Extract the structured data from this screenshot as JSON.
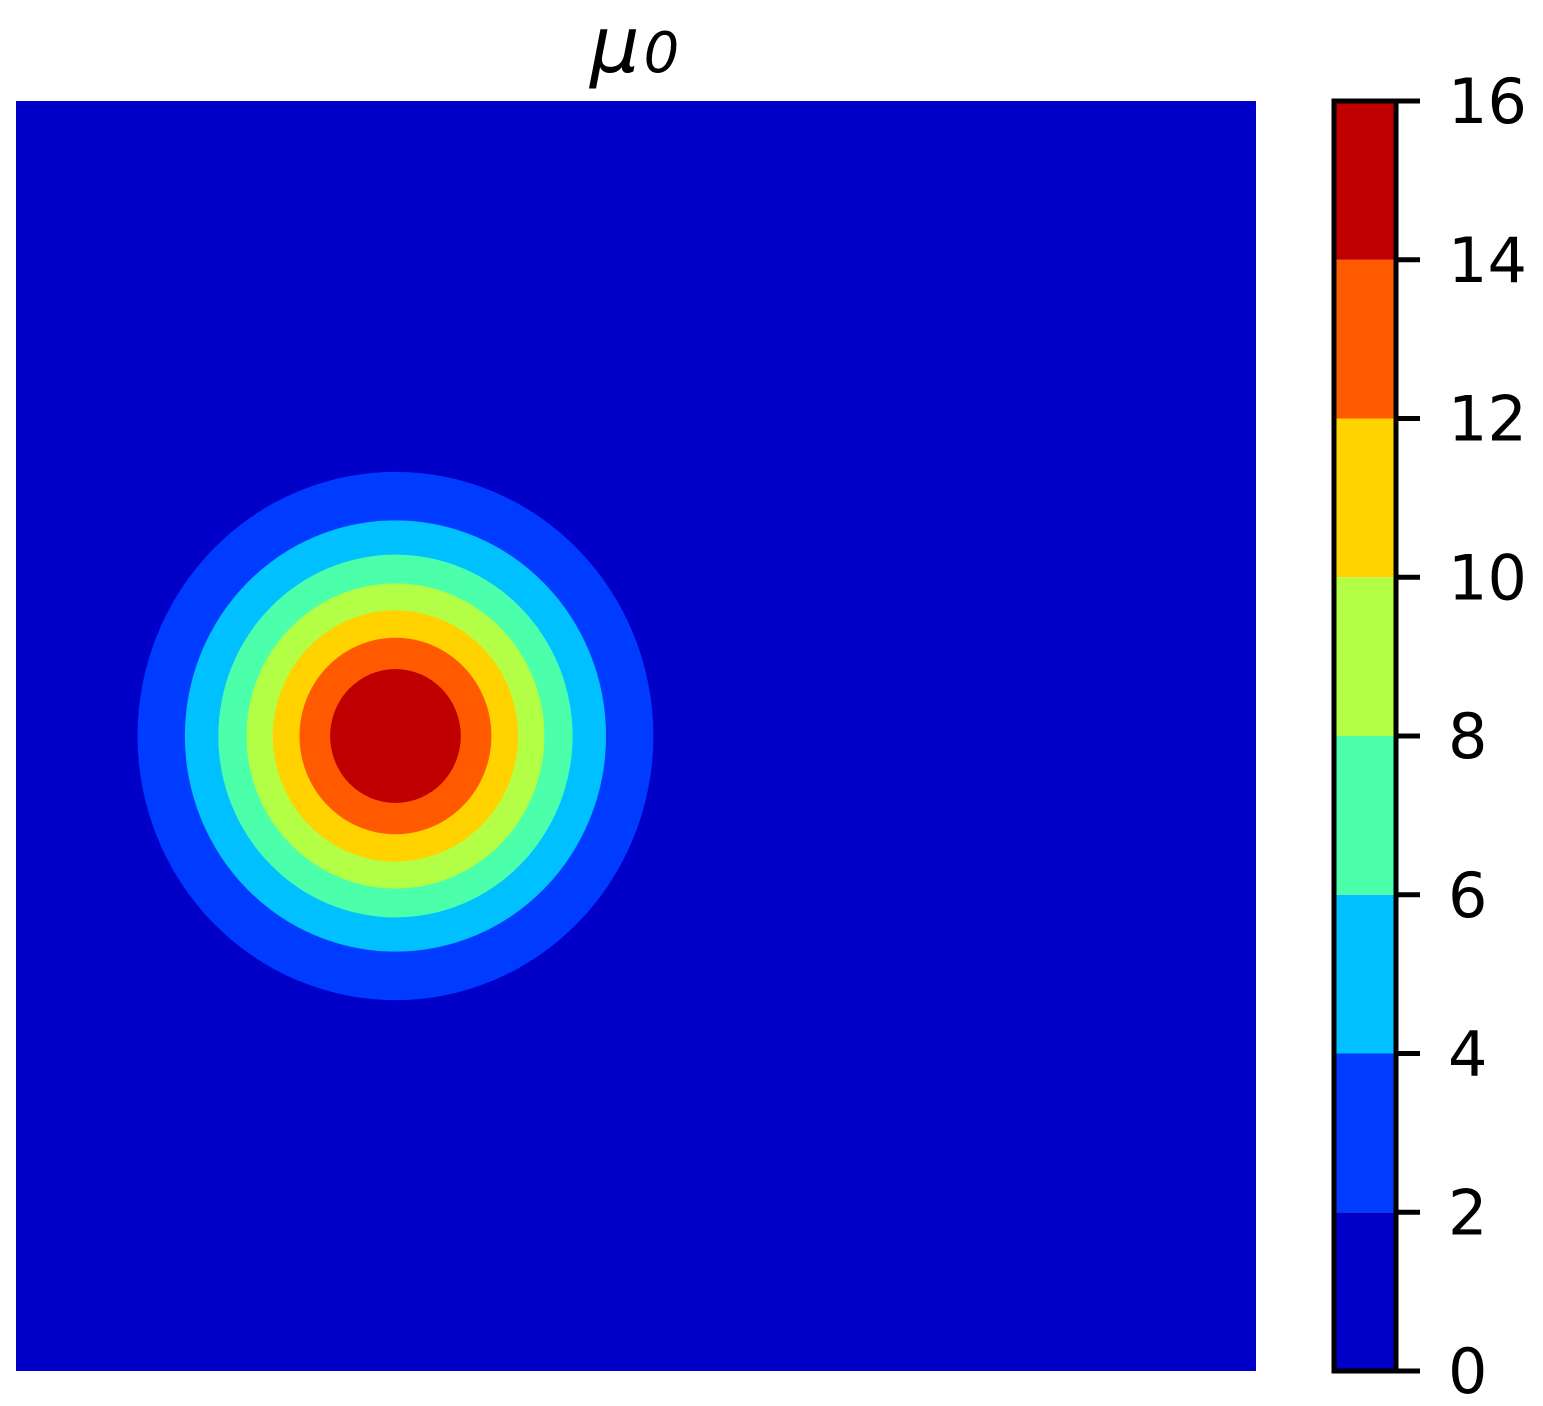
{
  "chart_data": {
    "type": "heatmap",
    "subtype": "filled-contour",
    "title": {
      "symbol": "μ",
      "subscript": "0"
    },
    "colormap": "jet",
    "axes_visible": false,
    "field": {
      "shape": "radial-gaussian",
      "peak_value": 16,
      "center": {
        "x": 0.306,
        "y": 0.5
      },
      "radius_of_outer_contour_at_level_2": 0.208
    },
    "contour_levels": [
      0,
      2,
      4,
      6,
      8,
      10,
      12,
      14,
      16
    ],
    "level_colors": [
      "#0000C8",
      "#003CFF",
      "#00C0FF",
      "#4CFFAA",
      "#B2FF46",
      "#FFD200",
      "#FF5A00",
      "#C00000"
    ],
    "colorbar": {
      "position": "right",
      "ticks": [
        0,
        2,
        4,
        6,
        8,
        10,
        12,
        14,
        16
      ],
      "tick_labels": [
        "0",
        "2",
        "4",
        "6",
        "8",
        "10",
        "12",
        "14",
        "16"
      ],
      "range": [
        0,
        16
      ]
    }
  }
}
